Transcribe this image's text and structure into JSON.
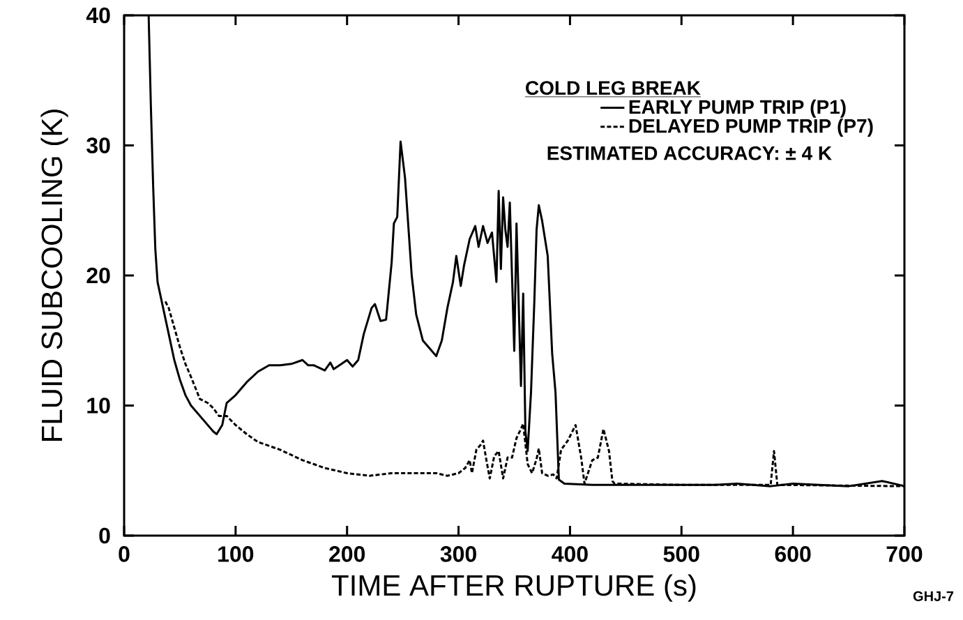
{
  "chart_data": {
    "type": "line",
    "xlabel": "TIME AFTER RUPTURE (s)",
    "ylabel": "FLUID SUBCOOLING (K)",
    "legend_title": "COLD LEG BREAK",
    "annotations": [
      "ESTIMATED ACCURACY: ± 4 K",
      "GHJ-7"
    ],
    "xlim": [
      0,
      700
    ],
    "ylim": [
      0,
      40
    ],
    "xticks": [
      0,
      100,
      200,
      300,
      400,
      500,
      600,
      700
    ],
    "yticks": [
      0,
      10,
      20,
      30,
      40
    ],
    "grid": false,
    "legend": "top right",
    "marker": "none",
    "series": [
      {
        "name": "EARLY PUMP TRIP (P1)",
        "color": "#000000",
        "line_style": "solid",
        "x": [
          22,
          24,
          26,
          28,
          30,
          35,
          40,
          45,
          50,
          55,
          60,
          70,
          80,
          83,
          88,
          92,
          100,
          110,
          120,
          130,
          140,
          150,
          160,
          165,
          170,
          180,
          185,
          188,
          195,
          200,
          205,
          210,
          215,
          222,
          225,
          230,
          235,
          240,
          242,
          245,
          248,
          252,
          258,
          262,
          268,
          270,
          275,
          280,
          285,
          290,
          295,
          298,
          302,
          305,
          310,
          315,
          318,
          322,
          326,
          330,
          334,
          336,
          338,
          340,
          342,
          344,
          346,
          350,
          352,
          356,
          358,
          360,
          362,
          365,
          368,
          370,
          372,
          375,
          380,
          384,
          387,
          390,
          395,
          420,
          450,
          480,
          500,
          530,
          550,
          580,
          600,
          650,
          680,
          700
        ],
        "values": [
          40,
          33,
          27,
          22,
          19.5,
          17.5,
          15.5,
          13.5,
          12,
          10.8,
          10,
          9,
          8,
          7.8,
          8.5,
          10.2,
          10.8,
          11.8,
          12.6,
          13.1,
          13.1,
          13.2,
          13.5,
          13.1,
          13.1,
          12.7,
          13.3,
          12.8,
          13.2,
          13.5,
          13,
          13.5,
          15.5,
          17.5,
          17.8,
          16.5,
          16.6,
          21,
          24,
          24.5,
          30.3,
          27.5,
          20,
          17,
          15,
          14.8,
          14.3,
          13.8,
          15,
          17.5,
          19.5,
          21.5,
          19.2,
          20.8,
          22.8,
          23.8,
          22.2,
          23.8,
          22.5,
          23.3,
          19.5,
          26.5,
          20.5,
          26,
          23.5,
          22.2,
          25.6,
          14.2,
          24,
          11.5,
          18.6,
          8,
          6.5,
          11,
          18,
          23.5,
          25.4,
          24.2,
          21.5,
          14,
          11,
          4.3,
          4,
          3.9,
          3.9,
          3.9,
          3.9,
          3.9,
          4,
          3.8,
          4,
          3.8,
          4.2,
          3.8
        ]
      },
      {
        "name": "DELAYED PUMP TRIP (P7)",
        "color": "#000000",
        "line_style": "dashed",
        "x": [
          37,
          40,
          45,
          50,
          55,
          60,
          68,
          75,
          80,
          85,
          92,
          100,
          110,
          120,
          140,
          160,
          180,
          200,
          220,
          240,
          260,
          280,
          290,
          300,
          306,
          310,
          312,
          316,
          320,
          322,
          325,
          328,
          332,
          336,
          340,
          344,
          348,
          352,
          356,
          358,
          362,
          366,
          370,
          372,
          375,
          380,
          385,
          388,
          392,
          398,
          405,
          410,
          413,
          420,
          425,
          430,
          435,
          438,
          440,
          500,
          580,
          583,
          586,
          700
        ],
        "values": [
          18,
          17.5,
          16,
          14.5,
          13.2,
          12.2,
          10.5,
          10.2,
          9.8,
          9.2,
          9.2,
          8.5,
          7.8,
          7.2,
          6.6,
          5.8,
          5.2,
          4.8,
          4.6,
          4.8,
          4.8,
          4.8,
          4.6,
          4.8,
          5.2,
          5.8,
          4.8,
          6.6,
          7,
          7.3,
          5.8,
          4.4,
          6.1,
          6.5,
          4.4,
          6,
          6,
          7.5,
          8.2,
          8.6,
          5.5,
          4.8,
          5.9,
          6.7,
          4.8,
          4.6,
          4.7,
          4.4,
          6.6,
          7.3,
          8.5,
          6,
          4,
          5.8,
          6,
          8.2,
          6.5,
          4.2,
          4,
          3.9,
          3.9,
          6.5,
          3.9,
          3.8
        ]
      }
    ]
  }
}
